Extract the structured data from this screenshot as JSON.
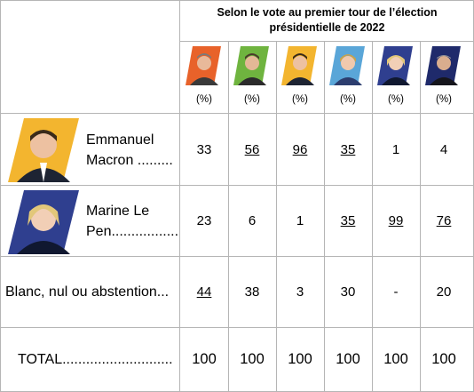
{
  "header": {
    "title_line1": "Selon le vote au premier tour de l’élection",
    "title_line2": "présidentielle de 2022"
  },
  "columns": [
    {
      "candidate_photo": "candidate-photo-1",
      "accent": "#e8622a",
      "unit": "(%)"
    },
    {
      "candidate_photo": "candidate-photo-2",
      "accent": "#6fb43f",
      "unit": "(%)"
    },
    {
      "candidate_photo": "candidate-photo-3",
      "accent": "#f3b52f",
      "unit": "(%)"
    },
    {
      "candidate_photo": "candidate-photo-4",
      "accent": "#5aa6d8",
      "unit": "(%)"
    },
    {
      "candidate_photo": "candidate-photo-5",
      "accent": "#2f3f8f",
      "unit": "(%)"
    },
    {
      "candidate_photo": "candidate-photo-6",
      "accent": "#1f2a6b",
      "unit": "(%)"
    }
  ],
  "rows": [
    {
      "label_line1": "Emmanuel",
      "label_line2": "Macron .........",
      "photo_accent": "#f3b52f",
      "values": [
        {
          "v": "33",
          "u": false
        },
        {
          "v": "56",
          "u": true
        },
        {
          "v": "96",
          "u": true
        },
        {
          "v": "35",
          "u": true
        },
        {
          "v": "1",
          "u": false
        },
        {
          "v": "4",
          "u": false
        }
      ]
    },
    {
      "label_line1": "Marine Le",
      "label_line2": "Pen.................",
      "photo_accent": "#2f3f8f",
      "values": [
        {
          "v": "23",
          "u": false
        },
        {
          "v": "6",
          "u": false
        },
        {
          "v": "1",
          "u": false
        },
        {
          "v": "35",
          "u": true
        },
        {
          "v": "99",
          "u": true
        },
        {
          "v": "76",
          "u": true
        }
      ]
    },
    {
      "label": "Blanc, nul ou abstention...",
      "values": [
        {
          "v": "44",
          "u": true
        },
        {
          "v": "38",
          "u": false
        },
        {
          "v": "3",
          "u": false
        },
        {
          "v": "30",
          "u": false
        },
        {
          "v": "-",
          "u": false
        },
        {
          "v": "20",
          "u": false
        }
      ]
    },
    {
      "label": "TOTAL............................",
      "values": [
        {
          "v": "100",
          "u": false
        },
        {
          "v": "100",
          "u": false
        },
        {
          "v": "100",
          "u": false
        },
        {
          "v": "100",
          "u": false
        },
        {
          "v": "100",
          "u": false
        },
        {
          "v": "100",
          "u": false
        }
      ]
    }
  ]
}
